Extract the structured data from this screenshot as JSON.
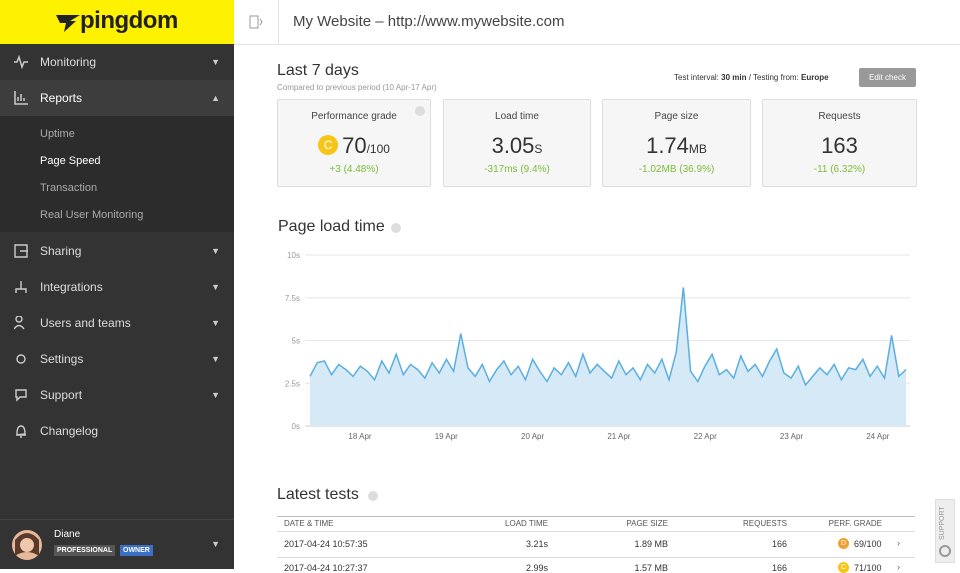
{
  "sidebar": {
    "logo": "pingdom",
    "nav_top": [
      "Monitoring",
      "Reports"
    ],
    "reports_subnav": [
      "Uptime",
      "Page Speed",
      "Transaction",
      "Real User Monitoring"
    ],
    "nav_bottom": [
      "Sharing",
      "Integrations",
      "Users and teams",
      "Settings",
      "Support",
      "Changelog"
    ],
    "user": {
      "name": "Diane",
      "badges": [
        "PROFESSIONAL",
        "OWNER"
      ]
    }
  },
  "header": {
    "title": "My Website – http://www.mywebsite.com"
  },
  "summary": {
    "title": "Last 7 days",
    "subtitle": "Compared to previous period (10 Apr-17 Apr)",
    "test_interval_label": "Test interval:",
    "test_interval": "30 min",
    "testing_from_label": "/ Testing from:",
    "testing_from": "Europe",
    "edit_button": "Edit check"
  },
  "metrics": [
    {
      "label": "Performance grade",
      "grade": "C",
      "value": "70",
      "unit": "/100",
      "change": "+3 (4.48%)"
    },
    {
      "label": "Load time",
      "value": "3.05",
      "unit": "S",
      "change": "-317ms (9.4%)"
    },
    {
      "label": "Page size",
      "value": "1.74",
      "unit": "MB",
      "change": "-1.02MB (36.9%)"
    },
    {
      "label": "Requests",
      "value": "163",
      "change": "-11 (6.32%)"
    }
  ],
  "chart_data": {
    "type": "area",
    "title": "Page load time",
    "xticks": [
      "18 Apr",
      "19 Apr",
      "20 Apr",
      "21 Apr",
      "22 Apr",
      "23 Apr",
      "24 Apr"
    ],
    "ylim": [
      0,
      10
    ],
    "yticks": [
      {
        "value": 0,
        "label": "0s"
      },
      {
        "value": 2.5,
        "label": "2.5s"
      },
      {
        "value": 5,
        "label": "5s"
      },
      {
        "value": 7.5,
        "label": "7.5s"
      },
      {
        "value": 10,
        "label": "10s"
      }
    ],
    "grid": true,
    "series": [
      {
        "color": "#5aafe0",
        "fill": "#d5e9f7",
        "values": [
          2.9,
          3.7,
          3.8,
          3.0,
          3.6,
          3.3,
          2.9,
          3.5,
          3.2,
          2.7,
          3.8,
          3.1,
          4.2,
          3.0,
          3.6,
          3.3,
          2.8,
          3.7,
          3.1,
          3.9,
          3.2,
          5.4,
          3.4,
          2.9,
          3.6,
          2.6,
          3.3,
          3.8,
          3.0,
          3.5,
          2.7,
          3.9,
          3.2,
          2.6,
          3.4,
          3.0,
          3.7,
          2.9,
          4.2,
          3.1,
          3.6,
          3.2,
          2.8,
          3.8,
          3.0,
          3.4,
          2.7,
          3.6,
          3.1,
          3.9,
          2.7,
          4.3,
          8.1,
          3.2,
          2.6,
          3.5,
          4.2,
          3.0,
          3.3,
          2.8,
          4.1,
          3.2,
          3.6,
          2.9,
          3.8,
          4.5,
          3.1,
          2.8,
          3.5,
          2.4,
          2.9,
          3.4,
          3.0,
          3.6,
          2.7,
          3.4,
          3.3,
          3.9,
          2.9,
          3.5,
          2.8,
          5.3,
          2.9,
          3.3
        ]
      }
    ]
  },
  "latest_tests": {
    "title": "Latest tests",
    "columns": [
      "DATE & TIME",
      "LOAD TIME",
      "PAGE SIZE",
      "REQUESTS",
      "PERF. GRADE"
    ],
    "rows": [
      [
        "2017-04-24 10:57:35",
        "3.21s",
        "1.89 MB",
        "166",
        "D",
        "69/100"
      ],
      [
        "2017-04-24 10:27:37",
        "2.99s",
        "1.57 MB",
        "166",
        "C",
        "71/100"
      ]
    ]
  },
  "support_tab": "SUPPORT"
}
